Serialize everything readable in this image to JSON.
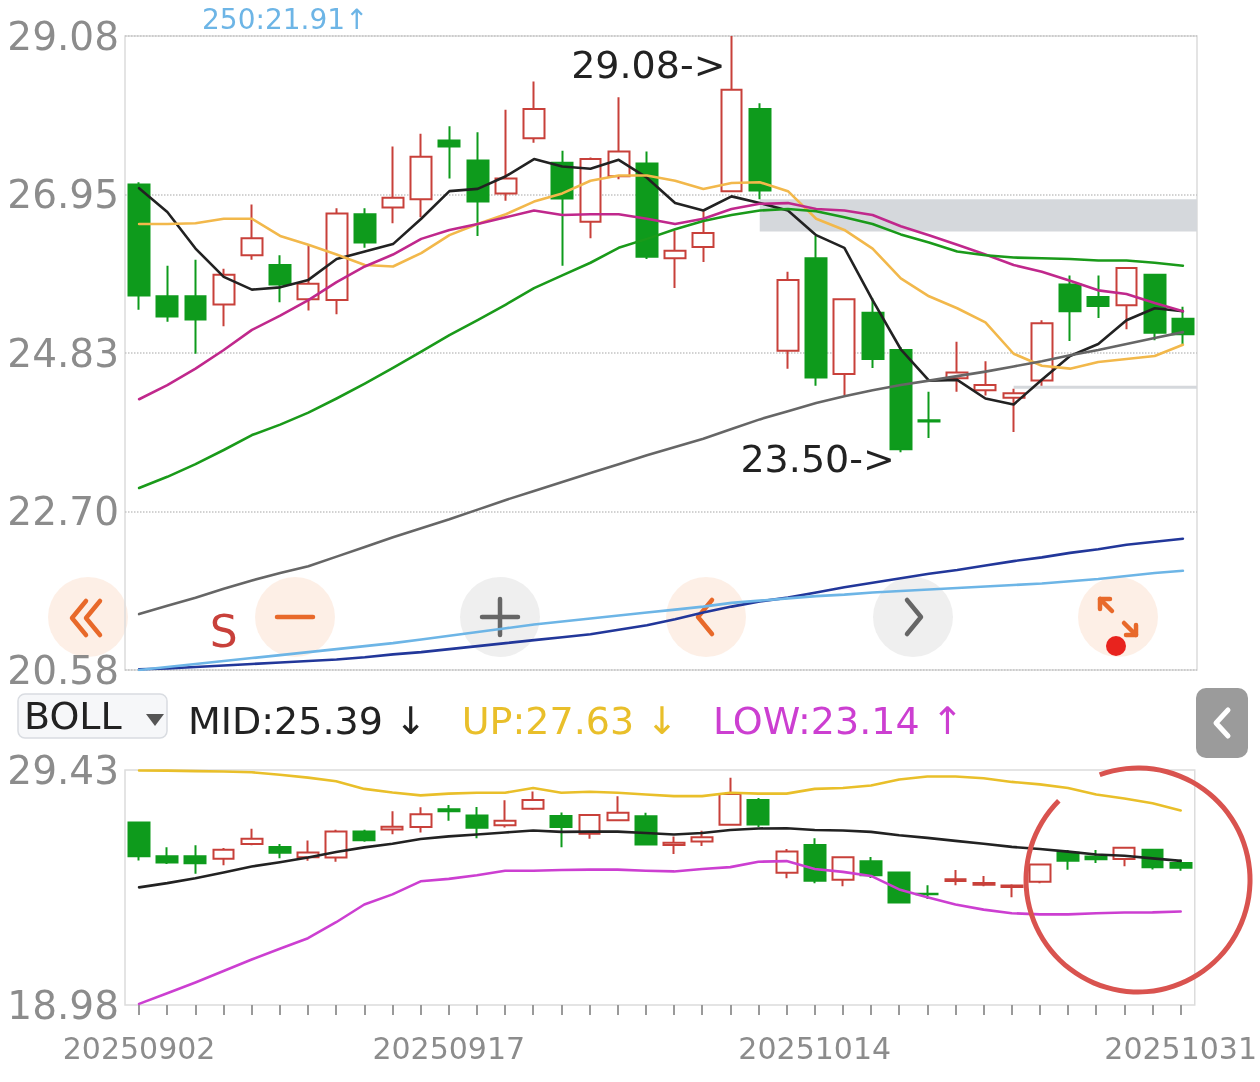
{
  "chart_data": [
    {
      "type": "candlestick",
      "tick_labels": "y",
      "grid": "y",
      "legend": "top left",
      "marker": "none",
      "categories": [
        "20250902",
        null,
        null,
        null,
        null,
        null,
        null,
        null,
        null,
        null,
        null,
        "20250917",
        null,
        null,
        null,
        null,
        null,
        null,
        null,
        null,
        null,
        null,
        null,
        null,
        "20251014",
        null,
        null,
        null,
        null,
        null,
        null,
        null,
        null,
        null,
        null,
        null,
        null,
        "20251031"
      ],
      "ylim": [
        20.58,
        29.08
      ],
      "yticks": [
        20.58,
        {
          "value": 22.7,
          "label": "22.70"
        },
        24.83,
        26.95,
        29.08
      ],
      "series": [
        {
          "type": "candlestick",
          "ohlc": [
            [
              27.09,
              27.12,
              25.41,
              25.6
            ],
            [
              25.59,
              26.0,
              25.25,
              25.32
            ],
            [
              25.59,
              26.08,
              24.82,
              25.28
            ],
            [
              25.48,
              25.96,
              25.19,
              25.88
            ],
            [
              26.14,
              26.82,
              26.08,
              26.37
            ],
            [
              26.01,
              26.14,
              25.51,
              25.75
            ],
            [
              25.55,
              26.29,
              25.4,
              25.76
            ],
            [
              25.54,
              26.77,
              25.35,
              26.7
            ],
            [
              26.69,
              26.77,
              26.24,
              26.31
            ],
            [
              26.78,
              27.6,
              26.57,
              26.91
            ],
            [
              26.89,
              27.77,
              26.65,
              27.46
            ],
            [
              27.68,
              27.87,
              27.17,
              27.6
            ],
            [
              27.41,
              27.79,
              26.4,
              26.86
            ],
            [
              26.97,
              28.09,
              26.87,
              27.17
            ],
            [
              27.71,
              28.47,
              27.65,
              28.1
            ],
            [
              27.38,
              27.54,
              26.0,
              26.9
            ],
            [
              26.59,
              27.45,
              26.37,
              27.43
            ],
            [
              27.2,
              28.26,
              27.16,
              27.53
            ],
            [
              27.37,
              27.53,
              26.09,
              26.12
            ],
            [
              26.1,
              26.47,
              25.7,
              26.2
            ],
            [
              26.25,
              26.73,
              26.05,
              26.44
            ],
            [
              27.0,
              29.08,
              27.0,
              28.36
            ],
            [
              28.1,
              28.18,
              26.89,
              27.01
            ],
            [
              24.86,
              25.92,
              24.62,
              25.81
            ],
            [
              26.1,
              26.4,
              24.39,
              24.5
            ],
            [
              24.55,
              25.56,
              24.26,
              25.55
            ],
            [
              25.37,
              25.56,
              24.63,
              24.75
            ],
            [
              24.87,
              24.91,
              23.5,
              23.54
            ],
            [
              23.93,
              24.31,
              23.69,
              23.91
            ],
            [
              24.49,
              24.98,
              24.31,
              24.57
            ],
            [
              24.33,
              24.72,
              24.26,
              24.4
            ],
            [
              24.23,
              24.35,
              23.77,
              24.29
            ],
            [
              24.46,
              25.27,
              24.39,
              25.23
            ],
            [
              25.75,
              25.87,
              24.99,
              25.39
            ],
            [
              25.58,
              25.87,
              25.3,
              25.46
            ],
            [
              25.47,
              25.98,
              25.15,
              25.97
            ],
            [
              25.88,
              25.89,
              25.0,
              25.1
            ],
            [
              25.29,
              25.45,
              24.95,
              25.08
            ]
          ],
          "colors": [
            "#0e9b1c",
            "#0e9b1c",
            "#0e9b1c",
            "#c8403a",
            "#c8403a",
            "#0e9b1c",
            "#c8403a",
            "#c8403a",
            "#0e9b1c",
            "#c8403a",
            "#c8403a",
            "#0e9b1c",
            "#0e9b1c",
            "#c8403a",
            "#c8403a",
            "#0e9b1c",
            "#c8403a",
            "#c8403a",
            "#0e9b1c",
            "#c8403a",
            "#c8403a",
            "#c8403a",
            "#0e9b1c",
            "#c8403a",
            "#0e9b1c",
            "#c8403a",
            "#0e9b1c",
            "#0e9b1c",
            "#0e9b1c",
            "#c8403a",
            "#c8403a",
            "#c8403a",
            "#c8403a",
            "#0e9b1c",
            "#0e9b1c",
            "#c8403a",
            "#0e9b1c",
            "#0e9b1c"
          ]
        },
        {
          "type": "line",
          "color": "#222222",
          "values": [
            27.04,
            26.72,
            26.23,
            25.85,
            25.68,
            25.71,
            25.81,
            26.09,
            26.19,
            26.29,
            26.63,
            27.0,
            27.03,
            27.2,
            27.43,
            27.33,
            27.3,
            27.42,
            27.18,
            26.84,
            26.74,
            26.93,
            26.84,
            26.74,
            26.41,
            26.24,
            25.54,
            24.88,
            24.46,
            24.47,
            24.22,
            24.14,
            24.47,
            24.79,
            24.95,
            25.27,
            25.43,
            25.39
          ]
        },
        {
          "type": "line",
          "color": "#f2b84b",
          "values": [
            26.56,
            26.56,
            26.57,
            26.63,
            26.63,
            26.4,
            26.28,
            26.15,
            26.01,
            25.99,
            26.17,
            26.41,
            26.56,
            26.69,
            26.86,
            26.97,
            27.14,
            27.21,
            27.21,
            27.14,
            27.03,
            27.11,
            27.12,
            27.0,
            26.63,
            26.48,
            26.23,
            25.83,
            25.59,
            25.43,
            25.24,
            24.82,
            24.66,
            24.62,
            24.71,
            24.75,
            24.79,
            24.94
          ]
        },
        {
          "type": "line",
          "color": "#c0288c",
          "values": [
            24.21,
            24.4,
            24.62,
            24.87,
            25.14,
            25.33,
            25.54,
            25.78,
            25.99,
            26.15,
            26.36,
            26.48,
            26.56,
            26.65,
            26.74,
            26.68,
            26.69,
            26.69,
            26.63,
            26.56,
            26.63,
            26.76,
            26.83,
            26.84,
            26.76,
            26.74,
            26.68,
            26.53,
            26.41,
            26.28,
            26.15,
            26.01,
            25.92,
            25.8,
            25.67,
            25.62,
            25.5,
            25.39
          ]
        },
        {
          "type": "line",
          "color": "#1a9a1a",
          "values": [
            23.02,
            23.17,
            23.34,
            23.53,
            23.73,
            23.87,
            24.03,
            24.22,
            24.42,
            24.63,
            24.85,
            25.07,
            25.27,
            25.48,
            25.7,
            25.87,
            26.04,
            26.24,
            26.36,
            26.49,
            26.6,
            26.68,
            26.74,
            26.76,
            26.73,
            26.65,
            26.56,
            26.42,
            26.31,
            26.19,
            26.14,
            26.11,
            26.1,
            26.09,
            26.07,
            26.07,
            26.04,
            26.0
          ]
        },
        {
          "type": "line",
          "color": "#666666",
          "values": [
            21.33,
            21.44,
            21.55,
            21.67,
            21.78,
            21.88,
            21.97,
            22.1,
            22.23,
            22.36,
            22.48,
            22.6,
            22.73,
            22.86,
            22.98,
            23.1,
            23.22,
            23.34,
            23.46,
            23.57,
            23.68,
            23.81,
            23.94,
            24.05,
            24.16,
            24.25,
            24.33,
            24.4,
            24.46,
            24.52,
            24.58,
            24.65,
            24.72,
            24.8,
            24.87,
            24.95,
            25.03,
            25.11
          ]
        },
        {
          "type": "line",
          "color": "#22379a",
          "values": [
            20.59,
            20.6,
            20.62,
            20.64,
            20.66,
            20.68,
            20.7,
            20.72,
            20.75,
            20.79,
            20.82,
            20.86,
            20.9,
            20.94,
            20.98,
            21.02,
            21.06,
            21.12,
            21.18,
            21.26,
            21.35,
            21.43,
            21.5,
            21.55,
            21.62,
            21.69,
            21.75,
            21.81,
            21.87,
            21.92,
            21.98,
            22.04,
            22.09,
            22.15,
            22.2,
            22.26,
            22.3,
            22.34
          ]
        },
        {
          "type": "line",
          "name": "250:21.91↑",
          "color": "#6db5e6",
          "values": [
            20.58,
            20.62,
            20.66,
            20.7,
            20.74,
            20.78,
            20.82,
            20.86,
            20.9,
            20.94,
            20.99,
            21.04,
            21.09,
            21.14,
            21.19,
            21.23,
            21.27,
            21.31,
            21.35,
            21.39,
            21.43,
            21.48,
            21.51,
            21.54,
            21.57,
            21.59,
            21.62,
            21.64,
            21.66,
            21.68,
            21.7,
            21.72,
            21.74,
            21.77,
            21.8,
            21.84,
            21.88,
            21.91
          ]
        }
      ],
      "bands": [
        {
          "axis": "y",
          "from": 26.46,
          "to": 26.89,
          "color": "#d5d8dc"
        },
        {
          "axis": "y",
          "from": 24.35,
          "to": 24.39,
          "color": "#d5d8dc"
        }
      ],
      "annotations": [
        "29.08->",
        "23.50->",
        "S"
      ]
    },
    {
      "type": "candlestick",
      "title": "BOLL",
      "legend": "top left",
      "marker": "none",
      "categories": [
        "20250902",
        null,
        null,
        null,
        null,
        null,
        null,
        null,
        null,
        null,
        null,
        "20250917",
        null,
        null,
        null,
        null,
        null,
        null,
        null,
        null,
        null,
        null,
        null,
        null,
        "20251014",
        null,
        null,
        null,
        null,
        null,
        null,
        null,
        null,
        null,
        null,
        null,
        null,
        "20251031"
      ],
      "ylim": [
        18.98,
        29.43
      ],
      "yticks": [
        18.98,
        29.43
      ],
      "series": [
        {
          "type": "candlestick",
          "ohlc": [
            [
              27.09,
              27.12,
              25.41,
              25.6
            ],
            [
              25.59,
              26.0,
              25.25,
              25.32
            ],
            [
              25.59,
              26.08,
              24.82,
              25.28
            ],
            [
              25.48,
              25.96,
              25.19,
              25.88
            ],
            [
              26.14,
              26.82,
              26.08,
              26.37
            ],
            [
              26.01,
              26.14,
              25.51,
              25.75
            ],
            [
              25.55,
              26.29,
              25.4,
              25.76
            ],
            [
              25.54,
              26.77,
              25.35,
              26.7
            ],
            [
              26.69,
              26.77,
              26.24,
              26.31
            ],
            [
              26.78,
              27.6,
              26.57,
              26.91
            ],
            [
              26.89,
              27.77,
              26.65,
              27.46
            ],
            [
              27.68,
              27.87,
              27.17,
              27.6
            ],
            [
              27.41,
              27.79,
              26.4,
              26.86
            ],
            [
              26.97,
              28.09,
              26.87,
              27.17
            ],
            [
              27.71,
              28.47,
              27.65,
              28.1
            ],
            [
              27.38,
              27.54,
              26.0,
              26.9
            ],
            [
              26.59,
              27.45,
              26.37,
              27.43
            ],
            [
              27.2,
              28.26,
              27.16,
              27.53
            ],
            [
              27.37,
              27.53,
              26.09,
              26.12
            ],
            [
              26.1,
              26.47,
              25.7,
              26.2
            ],
            [
              26.25,
              26.73,
              26.05,
              26.44
            ],
            [
              27.0,
              29.08,
              27.0,
              28.36
            ],
            [
              28.1,
              28.18,
              26.89,
              27.01
            ],
            [
              24.86,
              25.92,
              24.62,
              25.81
            ],
            [
              26.1,
              26.4,
              24.39,
              24.5
            ],
            [
              24.55,
              25.56,
              24.26,
              25.55
            ],
            [
              25.37,
              25.56,
              24.63,
              24.75
            ],
            [
              24.87,
              24.91,
              23.5,
              23.54
            ],
            [
              23.93,
              24.31,
              23.69,
              23.91
            ],
            [
              24.49,
              24.98,
              24.31,
              24.57
            ],
            [
              24.33,
              24.72,
              24.26,
              24.4
            ],
            [
              24.23,
              24.35,
              23.77,
              24.29
            ],
            [
              24.46,
              25.27,
              24.39,
              25.23
            ],
            [
              25.75,
              25.87,
              24.99,
              25.39
            ],
            [
              25.58,
              25.87,
              25.3,
              25.46
            ],
            [
              25.47,
              25.98,
              25.15,
              25.97
            ],
            [
              25.88,
              25.89,
              25.0,
              25.1
            ],
            [
              25.29,
              25.45,
              24.95,
              25.08
            ]
          ],
          "colors": [
            "#0e9b1c",
            "#0e9b1c",
            "#0e9b1c",
            "#c8403a",
            "#c8403a",
            "#0e9b1c",
            "#c8403a",
            "#c8403a",
            "#0e9b1c",
            "#c8403a",
            "#c8403a",
            "#0e9b1c",
            "#0e9b1c",
            "#c8403a",
            "#c8403a",
            "#0e9b1c",
            "#c8403a",
            "#c8403a",
            "#0e9b1c",
            "#c8403a",
            "#c8403a",
            "#c8403a",
            "#0e9b1c",
            "#c8403a",
            "#0e9b1c",
            "#c8403a",
            "#0e9b1c",
            "#0e9b1c",
            "#0e9b1c",
            "#c8403a",
            "#c8403a",
            "#c8403a",
            "#c8403a",
            "#0e9b1c",
            "#0e9b1c",
            "#c8403a",
            "#0e9b1c",
            "#0e9b1c"
          ]
        },
        {
          "type": "line",
          "name": "MID:25.39 ↓",
          "color": "#222222",
          "values": [
            24.21,
            24.4,
            24.62,
            24.87,
            25.14,
            25.33,
            25.54,
            25.78,
            25.99,
            26.15,
            26.36,
            26.48,
            26.56,
            26.65,
            26.74,
            26.68,
            26.69,
            26.69,
            26.63,
            26.56,
            26.63,
            26.76,
            26.83,
            26.84,
            26.76,
            26.74,
            26.68,
            26.53,
            26.41,
            26.28,
            26.15,
            26.01,
            25.92,
            25.8,
            25.67,
            25.62,
            25.5,
            25.39
          ]
        },
        {
          "type": "line",
          "name": "UP:27.63 ↓",
          "color": "#e9bf2a",
          "values": [
            29.41,
            29.4,
            29.38,
            29.36,
            29.33,
            29.22,
            29.09,
            28.93,
            28.59,
            28.43,
            28.3,
            28.38,
            28.42,
            28.42,
            28.63,
            28.42,
            28.46,
            28.42,
            28.34,
            28.27,
            28.27,
            28.42,
            28.38,
            28.38,
            28.59,
            28.63,
            28.74,
            29.01,
            29.14,
            29.14,
            29.06,
            28.9,
            28.79,
            28.63,
            28.34,
            28.16,
            27.95,
            27.63
          ]
        },
        {
          "type": "line",
          "name": "LOW:23.14 ↑",
          "color": "#cc3fd1",
          "values": [
            19.03,
            19.5,
            19.98,
            20.49,
            21.0,
            21.48,
            21.95,
            22.66,
            23.45,
            23.9,
            24.48,
            24.59,
            24.75,
            24.95,
            24.95,
            24.98,
            25.0,
            25.0,
            24.95,
            24.92,
            25.03,
            25.11,
            25.35,
            25.38,
            25.03,
            24.9,
            24.72,
            24.12,
            23.77,
            23.45,
            23.22,
            23.06,
            23.01,
            23.01,
            23.06,
            23.09,
            23.1,
            23.14
          ]
        }
      ]
    }
  ]
}
